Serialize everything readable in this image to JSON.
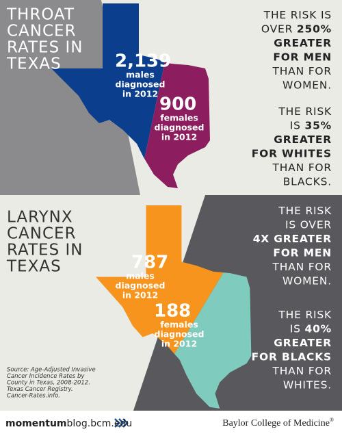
{
  "throat": {
    "title": [
      "THROAT",
      "CANCER",
      "RATES IN",
      "TEXAS"
    ],
    "men": {
      "count": "2,139",
      "label": [
        "males",
        "diagnosed",
        "in 2012"
      ]
    },
    "women": {
      "count": "900",
      "label": [
        "females",
        "diagnosed",
        "in 2012"
      ]
    },
    "risks": [
      {
        "lines": [
          {
            "plain": "THE RISK IS"
          },
          {
            "plain": "OVER ",
            "bold": "250%"
          },
          {
            "bold": "GREATER"
          },
          {
            "bold": "FOR MEN"
          },
          {
            "plain": "THAN FOR"
          },
          {
            "plain": "WOMEN."
          }
        ]
      },
      {
        "lines": [
          {
            "plain": "THE RISK"
          },
          {
            "plain": "IS ",
            "bold": "35%"
          },
          {
            "bold": "GREATER"
          },
          {
            "bold": "FOR WHITES"
          },
          {
            "plain": "THAN FOR"
          },
          {
            "plain": "BLACKS."
          }
        ]
      }
    ]
  },
  "larynx": {
    "title": [
      "LARYNX",
      "CANCER",
      "RATES IN",
      "TEXAS"
    ],
    "men": {
      "count": "787",
      "label": [
        "males",
        "diagnosed",
        "in 2012"
      ]
    },
    "women": {
      "count": "188",
      "label": [
        "females",
        "diagnosed",
        "in 2012"
      ]
    },
    "risks": [
      {
        "lines": [
          {
            "plain": "THE RISK"
          },
          {
            "plain": "IS OVER"
          },
          {
            "bold": "4X GREATER"
          },
          {
            "bold": "FOR MEN"
          },
          {
            "plain": "THAN FOR"
          },
          {
            "plain": "WOMEN."
          }
        ]
      },
      {
        "lines": [
          {
            "plain": "THE RISK"
          },
          {
            "plain": "IS ",
            "bold": "40%"
          },
          {
            "bold": "GREATER"
          },
          {
            "bold": "FOR BLACKS"
          },
          {
            "plain": "THAN FOR"
          },
          {
            "plain": "WHITES."
          }
        ]
      }
    ]
  },
  "source": [
    "Source: Age-Adjusted Invasive",
    "Cancer Incidence Rates by",
    "County in Texas, 2008-2012.",
    "Texas Cancer Registry.",
    "Cancer-Rates.info."
  ],
  "footer": {
    "site_bold": "momentum",
    "site_rest": "blog.bcm.edu",
    "org": "Baylor College of Medicine",
    "org_mark": "®"
  }
}
